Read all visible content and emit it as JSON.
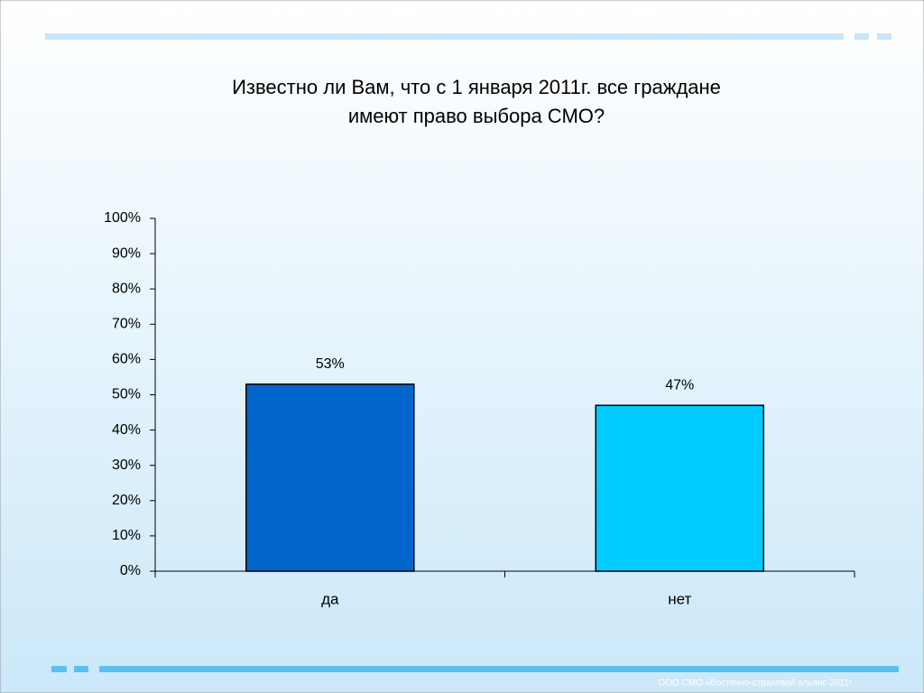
{
  "chart_data": {
    "type": "bar",
    "title": [
      "Известно ли Вам, что с 1 января 2011г. все граждане",
      "имеют право выбора СМО?"
    ],
    "categories": [
      "да",
      "нет"
    ],
    "values": [
      53,
      47
    ],
    "value_labels": [
      "53%",
      "47%"
    ],
    "colors": [
      "#0066cc",
      "#00ccff"
    ],
    "ylim": [
      0,
      100
    ],
    "yticks": [
      {
        "value": 0,
        "label": "0%"
      },
      {
        "value": 10,
        "label": "10%"
      },
      {
        "value": 20,
        "label": "20%"
      },
      {
        "value": 30,
        "label": "30%"
      },
      {
        "value": 40,
        "label": "40%"
      },
      {
        "value": 50,
        "label": "50%"
      },
      {
        "value": 60,
        "label": "60%"
      },
      {
        "value": 70,
        "label": "70%"
      },
      {
        "value": 80,
        "label": "80%"
      },
      {
        "value": 90,
        "label": "90%"
      },
      {
        "value": 100,
        "label": "100%"
      }
    ],
    "grid": false
  },
  "footer": "ООО СМО «Восточно-страховой альянс 2011г."
}
